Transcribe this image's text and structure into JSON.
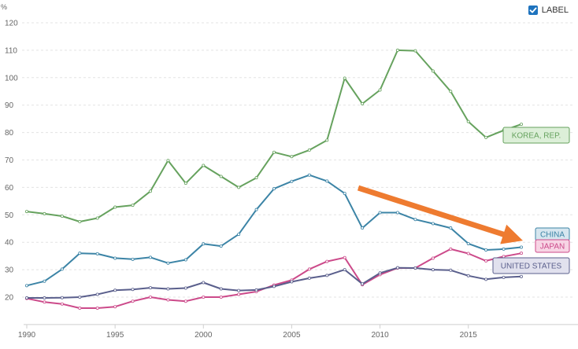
{
  "controls": {
    "label_toggle_text": "LABEL",
    "label_checked": true
  },
  "chart_data": {
    "type": "line",
    "unit_label": "%",
    "y_ticks": [
      20,
      30,
      40,
      50,
      60,
      70,
      80,
      90,
      100,
      110,
      120
    ],
    "x_ticks": [
      1990,
      1995,
      2000,
      2005,
      2010,
      2015
    ],
    "ylim": [
      10,
      120
    ],
    "xlim": [
      1990,
      2018
    ],
    "grid": true,
    "x": [
      1990,
      1991,
      1992,
      1993,
      1994,
      1995,
      1996,
      1997,
      1998,
      1999,
      2000,
      2001,
      2002,
      2003,
      2004,
      2005,
      2006,
      2007,
      2008,
      2009,
      2010,
      2011,
      2012,
      2013,
      2014,
      2015,
      2016,
      2017,
      2018
    ],
    "series": [
      {
        "name": "KOREA, REP.",
        "color": "#66a25e",
        "tag_fill": "#dcefd8",
        "values": [
          51.2,
          50.4,
          49.5,
          47.5,
          48.8,
          52.8,
          53.5,
          58.6,
          69.8,
          61.5,
          68.0,
          64.0,
          60.0,
          63.5,
          72.8,
          71.2,
          73.6,
          77.2,
          99.8,
          90.5,
          95.5,
          110.0,
          109.8,
          102.4,
          95.0,
          84.0,
          78.2,
          80.8,
          83.0
        ]
      },
      {
        "name": "CHINA",
        "color": "#3c84a6",
        "tag_fill": "#d6e6ef",
        "values": [
          24.2,
          25.8,
          30.2,
          36.0,
          35.8,
          34.2,
          33.8,
          34.5,
          32.4,
          33.6,
          39.4,
          38.6,
          42.9,
          51.9,
          59.5,
          62.2,
          64.5,
          62.3,
          57.8,
          45.2,
          50.8,
          50.8,
          48.3,
          46.8,
          45.2,
          39.5,
          37.2,
          37.5,
          38.2
        ]
      },
      {
        "name": "JAPAN",
        "color": "#cc4a8a",
        "tag_fill": "#f7d4e4",
        "values": [
          19.5,
          18.2,
          17.5,
          16.0,
          16.0,
          16.5,
          18.5,
          20.0,
          19.0,
          18.5,
          20.0,
          20.0,
          21.0,
          22.0,
          24.4,
          26.2,
          30.2,
          33.0,
          34.4,
          24.5,
          28.2,
          30.6,
          30.6,
          34.2,
          37.5,
          35.9,
          33.2,
          34.8,
          36.0
        ]
      },
      {
        "name": "UNITED STATES",
        "color": "#5a5f8c",
        "tag_fill": "#e1e1ee",
        "values": [
          19.7,
          19.7,
          19.8,
          20.0,
          21.0,
          22.5,
          22.8,
          23.4,
          23.0,
          23.3,
          25.3,
          23.0,
          22.4,
          22.6,
          23.9,
          25.6,
          26.9,
          27.9,
          30.0,
          24.8,
          28.8,
          30.7,
          30.6,
          30.0,
          29.8,
          27.8,
          26.5,
          27.2,
          27.5
        ]
      }
    ],
    "annotation": {
      "type": "arrow",
      "color": "#ee7b30"
    }
  }
}
